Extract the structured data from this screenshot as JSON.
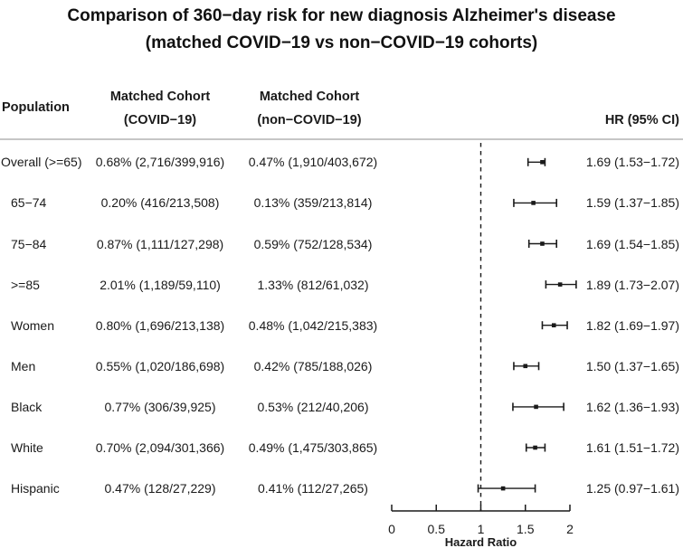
{
  "chart_data": {
    "type": "forest",
    "title_line1": "Comparison of 360−day risk for new diagnosis Alzheimer's disease",
    "title_line2": "(matched COVID−19 vs non−COVID−19 cohorts)",
    "columns": {
      "population": "Population",
      "covid_line1": "Matched Cohort",
      "covid_line2": "(COVID−19)",
      "noncovid_line1": "Matched Cohort",
      "noncovid_line2": "(non−COVID−19)",
      "hr": "HR (95% CI)"
    },
    "xlabel": "Hazard Ratio",
    "axis_ticks": [
      0,
      0.5,
      1,
      1.5,
      2
    ],
    "xlim": [
      0,
      2
    ],
    "reference_line": 1,
    "grid": false,
    "rows": [
      {
        "population": "Overall (>=65)",
        "covid": "0.68% (2,716/399,916)",
        "noncovid": "0.47% (1,910/403,672)",
        "hr": 1.69,
        "ci_low": 1.53,
        "ci_high": 1.72,
        "hr_label": "1.69 (1.53−1.72)"
      },
      {
        "population": "65−74",
        "covid": "0.20% (416/213,508)",
        "noncovid": "0.13% (359/213,814)",
        "hr": 1.59,
        "ci_low": 1.37,
        "ci_high": 1.85,
        "hr_label": "1.59 (1.37−1.85)"
      },
      {
        "population": "75−84",
        "covid": "0.87% (1,111/127,298)",
        "noncovid": "0.59% (752/128,534)",
        "hr": 1.69,
        "ci_low": 1.54,
        "ci_high": 1.85,
        "hr_label": "1.69 (1.54−1.85)"
      },
      {
        "population": ">=85",
        "covid": "2.01% (1,189/59,110)",
        "noncovid": "1.33% (812/61,032)",
        "hr": 1.89,
        "ci_low": 1.73,
        "ci_high": 2.07,
        "hr_label": "1.89 (1.73−2.07)"
      },
      {
        "population": "Women",
        "covid": "0.80% (1,696/213,138)",
        "noncovid": "0.48% (1,042/215,383)",
        "hr": 1.82,
        "ci_low": 1.69,
        "ci_high": 1.97,
        "hr_label": "1.82 (1.69−1.97)"
      },
      {
        "population": "Men",
        "covid": "0.55% (1,020/186,698)",
        "noncovid": "0.42% (785/188,026)",
        "hr": 1.5,
        "ci_low": 1.37,
        "ci_high": 1.65,
        "hr_label": "1.50 (1.37−1.65)"
      },
      {
        "population": "Black",
        "covid": "0.77% (306/39,925)",
        "noncovid": "0.53% (212/40,206)",
        "hr": 1.62,
        "ci_low": 1.36,
        "ci_high": 1.93,
        "hr_label": "1.62 (1.36−1.93)"
      },
      {
        "population": "White",
        "covid": "0.70% (2,094/301,366)",
        "noncovid": "0.49% (1,475/303,865)",
        "hr": 1.61,
        "ci_low": 1.51,
        "ci_high": 1.72,
        "hr_label": "1.61 (1.51−1.72)"
      },
      {
        "population": "Hispanic",
        "covid": "0.47% (128/27,229)",
        "noncovid": "0.41% (112/27,265)",
        "hr": 1.25,
        "ci_low": 0.97,
        "ci_high": 1.61,
        "hr_label": "1.25 (0.97−1.61)"
      }
    ],
    "colors": {
      "text": "#1a1a1a",
      "plot": "#1a1a1a",
      "separator": "#c6c6c6"
    }
  }
}
